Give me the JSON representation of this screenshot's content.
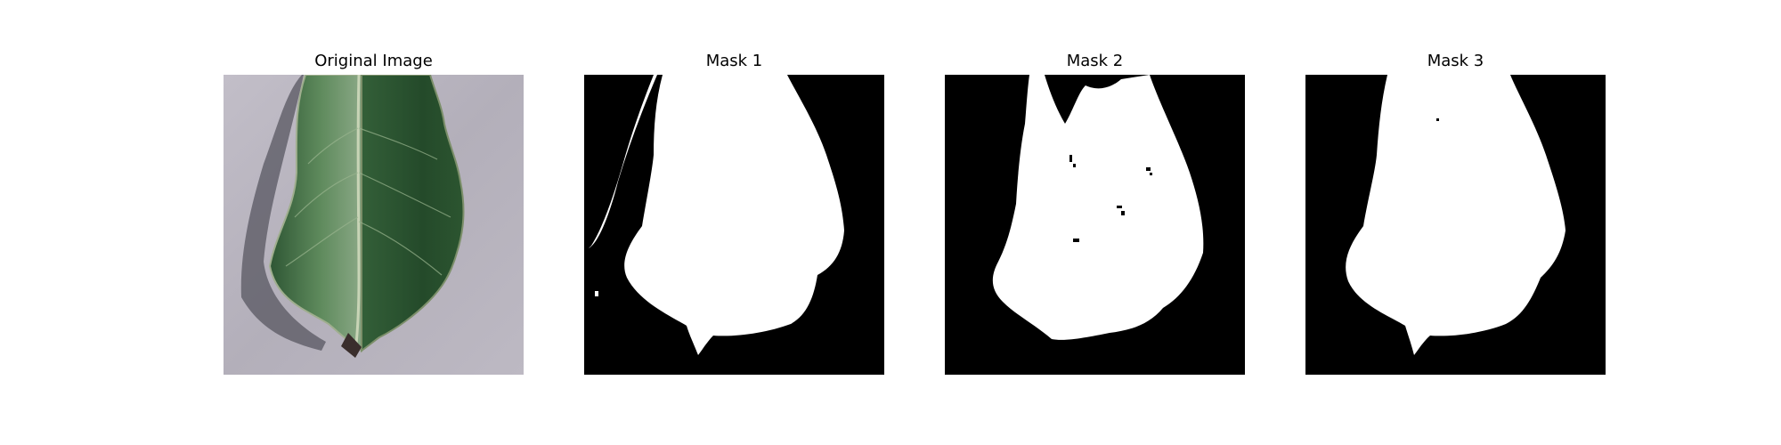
{
  "figure": {
    "panels": [
      {
        "title": "Original Image",
        "content": "leaf-photo"
      },
      {
        "title": "Mask 1",
        "content": "binary-mask"
      },
      {
        "title": "Mask 2",
        "content": "binary-mask"
      },
      {
        "title": "Mask 3",
        "content": "binary-mask"
      }
    ]
  },
  "colors": {
    "background": "#ffffff",
    "mask_foreground": "#ffffff",
    "mask_background": "#000000",
    "leaf_dark": "#244a2a",
    "leaf_mid": "#3d6b3f",
    "leaf_highlight": "#a8c0a2",
    "surface": "#b7b3bd",
    "shadow": "#5b5a63"
  }
}
